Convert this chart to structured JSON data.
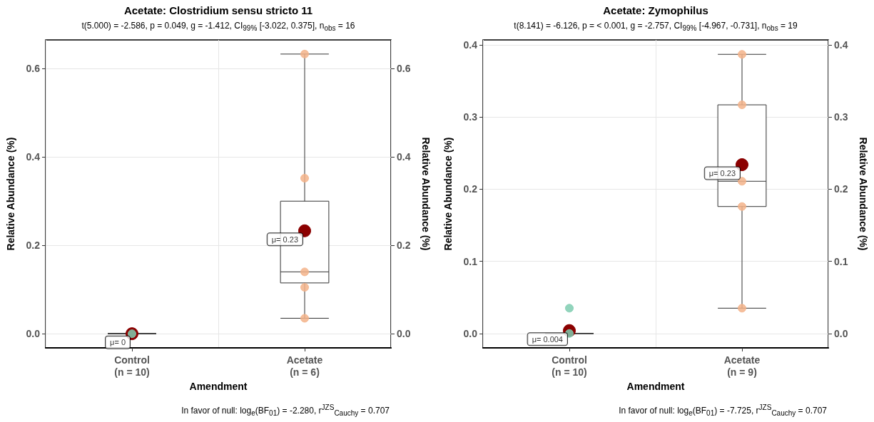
{
  "chart_data": [
    {
      "type": "box",
      "title": "Acetate: Clostridium sensu stricto 11",
      "subtitle": "t(5.000) = -2.586, p = 0.049, g = -1.412, CI$_{99%}$ [-3.022, 0.375], n$_{obs}$ = 16",
      "xlabel": "Amendment",
      "ylabel": "Relative Abundance (%)",
      "y2label": "Relative Abundance (%)",
      "categories": [
        "Control\n(n = 10)",
        "Acetate\n(n = 6)"
      ],
      "series": [
        {
          "type": "box",
          "color": "#333333",
          "boxes": [
            {
              "low": 0,
              "q1": 0,
              "median": 0,
              "q3": 0,
              "high": 0
            },
            {
              "low": 0.035,
              "q1": 0.115,
              "median": 0.14,
              "q3": 0.3,
              "high": 0.633
            }
          ]
        },
        {
          "type": "scatter",
          "color": "#8b0000",
          "x": [
            "Control\n(n = 10)",
            "Acetate\n(n = 6)"
          ],
          "values": [
            0,
            0.233
          ]
        },
        {
          "type": "scatter",
          "color": "#7fcdb0",
          "x": [
            "Control\n(n = 10)"
          ],
          "values": [
            0
          ]
        },
        {
          "type": "scatter",
          "color": "#f3b38a",
          "x": [
            "Acetate\n(n = 6)",
            "Acetate\n(n = 6)",
            "Acetate\n(n = 6)",
            "Acetate\n(n = 6)",
            "Acetate\n(n = 6)"
          ],
          "values": [
            0.633,
            0.352,
            0.14,
            0.105,
            0.035
          ]
        }
      ],
      "ylim": [
        -0.032,
        0.665
      ],
      "yticks": [
        {
          "value": 0,
          "label": "0.0"
        },
        0.2,
        0.4,
        0.6
      ],
      "y2lim": [
        -0.032,
        0.665
      ],
      "y2ticks": [
        {
          "value": 0,
          "label": "0.0"
        },
        0.2,
        0.4,
        0.6
      ],
      "grid": true,
      "annotations": [
        {
          "text": "μ= 0",
          "x": "Control\n(n = 10)",
          "y": 0
        },
        {
          "text": "μ= 0.23",
          "x": "Acetate\n(n = 6)",
          "y": 0.233
        },
        "In favor of null: log$_{e}$(BF$_{01}$) = -2.280, r$^{JZS}$$_{Cauchy}$ = 0.707"
      ]
    },
    {
      "type": "box",
      "title": "Acetate: Zymophilus",
      "subtitle": "t(8.141) = -6.126, p = < 0.001, g = -2.757, CI$_{99%}$ [-4.967, -0.731], n$_{obs}$ = 19",
      "xlabel": "Amendment",
      "ylabel": "Relative Abundance (%)",
      "y2label": "Relative Abundance (%)",
      "categories": [
        "Control\n(n = 10)",
        "Acetate\n(n = 9)"
      ],
      "series": [
        {
          "type": "box",
          "color": "#333333",
          "boxes": [
            {
              "low": 0,
              "q1": 0,
              "median": 0,
              "q3": 0,
              "high": 0
            },
            {
              "low": 0.035,
              "q1": 0.176,
              "median": 0.211,
              "q3": 0.317,
              "high": 0.387
            }
          ]
        },
        {
          "type": "scatter",
          "color": "#8b0000",
          "x": [
            "Control\n(n = 10)",
            "Acetate\n(n = 9)"
          ],
          "values": [
            0.004,
            0.234
          ]
        },
        {
          "type": "scatter",
          "color": "#7fcdb0",
          "x": [
            "Control\n(n = 10)",
            "Control\n(n = 10)"
          ],
          "values": [
            0.035,
            0
          ]
        },
        {
          "type": "scatter",
          "color": "#f3b38a",
          "x": [
            "Acetate\n(n = 9)",
            "Acetate\n(n = 9)",
            "Acetate\n(n = 9)",
            "Acetate\n(n = 9)",
            "Acetate\n(n = 9)"
          ],
          "values": [
            0.387,
            0.317,
            0.211,
            0.176,
            0.035
          ]
        }
      ],
      "ylim": [
        -0.02,
        0.407
      ],
      "yticks": [
        {
          "value": 0,
          "label": "0.0"
        },
        0.1,
        0.2,
        0.3,
        0.4
      ],
      "y2lim": [
        -0.02,
        0.407
      ],
      "y2ticks": [
        {
          "value": 0,
          "label": "0.0"
        },
        0.1,
        0.2,
        0.3,
        0.4
      ],
      "grid": true,
      "annotations": [
        {
          "text": "μ= 0.004",
          "x": "Control\n(n = 10)",
          "y": 0.004
        },
        {
          "text": "μ= 0.23",
          "x": "Acetate\n(n = 9)",
          "y": 0.234
        },
        "In favor of null: log$_{e}$(BF$_{01}$) = -7.725, r$^{JZS}$$_{Cauchy}$ = 0.707"
      ]
    }
  ]
}
